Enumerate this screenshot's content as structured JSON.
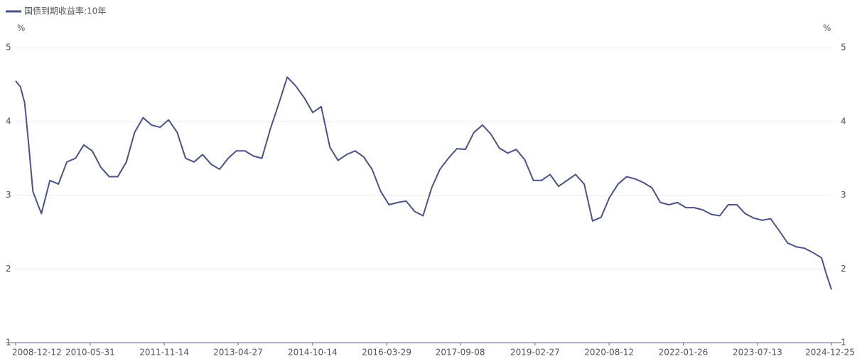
{
  "chart_data": {
    "type": "line",
    "y_unit": "%",
    "y2_unit": "%",
    "x": [
      "2008-12-12",
      "2009-01-15",
      "2009-02-15",
      "2009-03-15",
      "2009-04-15",
      "2009-05-15",
      "2009-06-15",
      "2009-08-15",
      "2009-10-15",
      "2009-12-15",
      "2010-02-15",
      "2010-04-15",
      "2010-06-15",
      "2010-08-15",
      "2010-10-15",
      "2010-12-15",
      "2011-02-15",
      "2011-04-15",
      "2011-06-15",
      "2011-08-15",
      "2011-10-15",
      "2011-12-15",
      "2012-02-15",
      "2012-04-15",
      "2012-06-15",
      "2012-08-15",
      "2012-10-15",
      "2012-12-15",
      "2013-02-15",
      "2013-04-15",
      "2013-06-15",
      "2013-08-15",
      "2013-10-15",
      "2013-12-15",
      "2014-02-15",
      "2014-04-15",
      "2014-06-15",
      "2014-08-15",
      "2014-10-15",
      "2014-12-15",
      "2015-02-15",
      "2015-04-15",
      "2015-06-15",
      "2015-08-15",
      "2015-10-15",
      "2015-12-15",
      "2016-02-15",
      "2016-04-15",
      "2016-06-15",
      "2016-08-15",
      "2016-10-15",
      "2016-12-15",
      "2017-02-15",
      "2017-04-15",
      "2017-06-15",
      "2017-08-15",
      "2017-10-15",
      "2017-12-15",
      "2018-02-15",
      "2018-04-15",
      "2018-06-15",
      "2018-08-15",
      "2018-10-15",
      "2018-12-15",
      "2019-02-15",
      "2019-04-15",
      "2019-06-15",
      "2019-08-15",
      "2019-10-15",
      "2019-12-15",
      "2020-02-15",
      "2020-04-15",
      "2020-06-15",
      "2020-08-15",
      "2020-10-15",
      "2020-12-15",
      "2021-02-15",
      "2021-04-15",
      "2021-06-15",
      "2021-08-15",
      "2021-10-15",
      "2021-12-15",
      "2022-02-15",
      "2022-04-15",
      "2022-06-15",
      "2022-08-15",
      "2022-10-15",
      "2022-12-15",
      "2023-02-15",
      "2023-04-15",
      "2023-06-15",
      "2023-08-15",
      "2023-10-15",
      "2023-12-15",
      "2024-02-15",
      "2024-04-15",
      "2024-06-15",
      "2024-08-15",
      "2024-10-15",
      "2024-11-15",
      "2024-12-25"
    ],
    "series": [
      {
        "name": "国债到期收益率:10年",
        "color": "#4a5289",
        "values": [
          4.55,
          4.47,
          4.25,
          3.7,
          3.05,
          2.9,
          2.75,
          3.2,
          3.15,
          3.45,
          3.5,
          3.68,
          3.6,
          3.38,
          3.25,
          3.25,
          3.45,
          3.85,
          4.05,
          3.95,
          3.92,
          4.02,
          3.85,
          3.5,
          3.45,
          3.55,
          3.42,
          3.35,
          3.5,
          3.6,
          3.6,
          3.53,
          3.5,
          3.9,
          4.25,
          4.6,
          4.48,
          4.32,
          4.12,
          4.2,
          3.65,
          3.47,
          3.55,
          3.6,
          3.52,
          3.35,
          3.05,
          2.87,
          2.9,
          2.92,
          2.78,
          2.72,
          3.1,
          3.35,
          3.5,
          3.63,
          3.62,
          3.85,
          3.95,
          3.83,
          3.64,
          3.57,
          3.62,
          3.48,
          3.2,
          3.2,
          3.28,
          3.12,
          3.2,
          3.28,
          3.15,
          2.65,
          2.7,
          2.97,
          3.15,
          3.25,
          3.22,
          3.17,
          3.1,
          2.9,
          2.87,
          2.9,
          2.83,
          2.83,
          2.8,
          2.74,
          2.72,
          2.87,
          2.87,
          2.75,
          2.69,
          2.66,
          2.68,
          2.52,
          2.35,
          2.3,
          2.28,
          2.22,
          2.15,
          1.95,
          1.72
        ]
      }
    ],
    "xlim": [
      "2008-12-12",
      "2024-12-25"
    ],
    "xticks": [
      "2008-12-12",
      "2010-05-31",
      "2011-11-14",
      "2013-04-27",
      "2014-10-14",
      "2016-03-29",
      "2017-09-08",
      "2019-02-27",
      "2020-08-12",
      "2022-01-26",
      "2023-07-13",
      "2024-12-25"
    ],
    "ylim": [
      1,
      5
    ],
    "yticks": [
      1,
      2,
      3,
      4,
      5
    ],
    "y2lim": [
      1,
      5
    ],
    "y2ticks": [
      1,
      2,
      3,
      4,
      5
    ],
    "grid": true
  }
}
